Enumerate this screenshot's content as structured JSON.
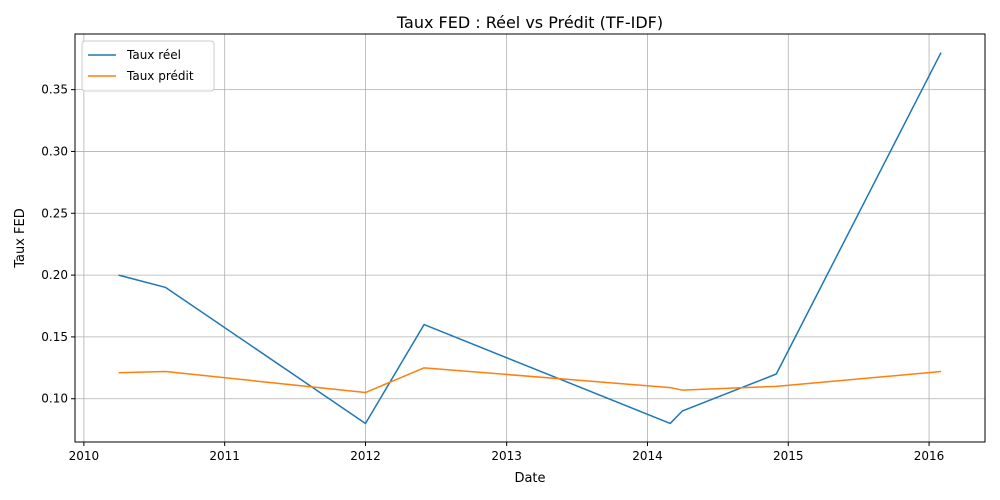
{
  "chart_data": {
    "type": "line",
    "title": "Taux FED : Réel vs Prédit (TF-IDF)",
    "xlabel": "Date",
    "ylabel": "Taux FED",
    "xlim": [
      "2009-12-09",
      "2016-05-25"
    ],
    "ylim": [
      0.065,
      0.395
    ],
    "x_ticks": [
      {
        "label": "2010",
        "date": "2010-01-01"
      },
      {
        "label": "2011",
        "date": "2011-01-01"
      },
      {
        "label": "2012",
        "date": "2012-01-01"
      },
      {
        "label": "2013",
        "date": "2013-01-01"
      },
      {
        "label": "2014",
        "date": "2014-01-01"
      },
      {
        "label": "2015",
        "date": "2015-01-01"
      },
      {
        "label": "2016",
        "date": "2016-01-01"
      }
    ],
    "y_ticks": [
      {
        "label": "0.10",
        "value": 0.1
      },
      {
        "label": "0.15",
        "value": 0.15
      },
      {
        "label": "0.20",
        "value": 0.2
      },
      {
        "label": "0.25",
        "value": 0.25
      },
      {
        "label": "0.30",
        "value": 0.3
      },
      {
        "label": "0.35",
        "value": 0.35
      }
    ],
    "grid": true,
    "legend_position": "upper-left",
    "series": [
      {
        "name": "Taux réel",
        "color": "#1f77b4",
        "points": [
          {
            "x": "2010-04-01",
            "y": 0.2
          },
          {
            "x": "2010-08-01",
            "y": 0.19
          },
          {
            "x": "2012-01-01",
            "y": 0.08
          },
          {
            "x": "2012-06-01",
            "y": 0.16
          },
          {
            "x": "2014-03-01",
            "y": 0.08
          },
          {
            "x": "2014-04-01",
            "y": 0.09
          },
          {
            "x": "2014-12-01",
            "y": 0.12
          },
          {
            "x": "2016-02-01",
            "y": 0.38
          }
        ]
      },
      {
        "name": "Taux prédit",
        "color": "#ff7f0e",
        "points": [
          {
            "x": "2010-04-01",
            "y": 0.121
          },
          {
            "x": "2010-08-01",
            "y": 0.122
          },
          {
            "x": "2012-01-01",
            "y": 0.105
          },
          {
            "x": "2012-06-01",
            "y": 0.125
          },
          {
            "x": "2014-03-01",
            "y": 0.109
          },
          {
            "x": "2014-04-01",
            "y": 0.107
          },
          {
            "x": "2014-12-01",
            "y": 0.11
          },
          {
            "x": "2016-02-01",
            "y": 0.122
          }
        ]
      }
    ]
  }
}
